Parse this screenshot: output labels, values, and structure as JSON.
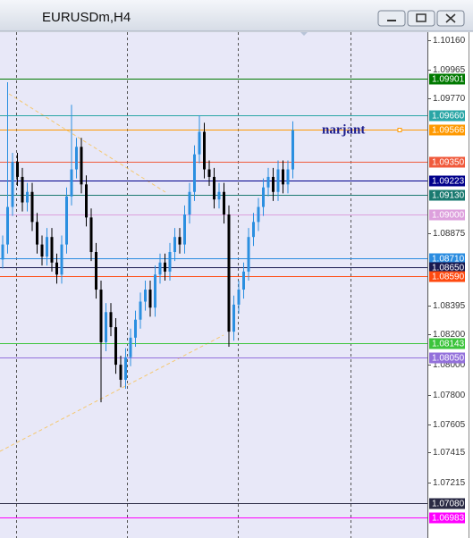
{
  "chart_data": {
    "type": "candlestick",
    "title": "EURUSDm,H4",
    "annotation": "narjant",
    "ylim": [
      1.06847,
      1.10219
    ],
    "yticks": [
      {
        "value": 1.1016,
        "label": "1.10160"
      },
      1.09965,
      {
        "value": 1.0977,
        "label": "1.09770"
      },
      1.08875,
      1.08395,
      {
        "value": 1.082,
        "label": "1.08200"
      },
      {
        "value": 1.08,
        "label": "1.08000"
      },
      {
        "value": 1.078,
        "label": "1.07800"
      },
      1.07605,
      1.07415,
      1.07215
    ],
    "up_color": "#2b8fe0",
    "down_color": "#000000",
    "open": [
      1.087,
      1.088,
      1.0905,
      1.0935,
      1.0925,
      1.0908,
      1.0915,
      1.0895,
      1.088,
      1.0872,
      1.0885,
      1.0868,
      1.086,
      1.088,
      1.0912,
      1.093,
      1.0945,
      1.092,
      1.0898,
      1.0875,
      1.085,
      1.0815,
      1.0835,
      1.0825,
      1.08,
      1.079,
      1.0805,
      1.0818,
      1.083,
      1.0842,
      1.085,
      1.0838,
      1.086,
      1.0868,
      1.0862,
      1.0875,
      1.0885,
      1.088,
      1.09,
      1.0915,
      1.094,
      1.0955,
      1.093,
      1.0925,
      1.091,
      1.0915,
      1.09,
      1.0822,
      1.084,
      1.085,
      1.0862,
      1.0885,
      1.0895,
      1.0905,
      1.0918,
      1.0925,
      1.0915,
      1.093,
      1.092,
      1.093
    ],
    "high": [
      1.0886,
      1.0988,
      1.0941,
      1.0941,
      1.0931,
      1.0921,
      1.0921,
      1.0901,
      1.0886,
      1.0891,
      1.0891,
      1.0874,
      1.0886,
      1.0918,
      1.0973,
      1.0951,
      1.0951,
      1.0926,
      1.0904,
      1.0881,
      1.0856,
      1.0841,
      1.0841,
      1.0831,
      1.0806,
      1.0811,
      1.0824,
      1.0836,
      1.0848,
      1.0856,
      1.0856,
      1.0866,
      1.0874,
      1.0874,
      1.0881,
      1.0891,
      1.0891,
      1.0906,
      1.0921,
      1.0946,
      1.0966,
      1.0961,
      1.0936,
      1.0931,
      1.0921,
      1.0921,
      1.0906,
      1.0846,
      1.0856,
      1.0868,
      1.0891,
      1.0901,
      1.0911,
      1.0924,
      1.0931,
      1.0931,
      1.0936,
      1.0936,
      1.0936,
      1.0962
    ],
    "low": [
      1.0864,
      1.0874,
      1.0899,
      1.0919,
      1.0902,
      1.0902,
      1.0889,
      1.0874,
      1.0866,
      1.0866,
      1.0862,
      1.0854,
      1.0854,
      1.0874,
      1.0906,
      1.0924,
      1.0914,
      1.0892,
      1.0869,
      1.0844,
      1.0775,
      1.0809,
      1.0819,
      1.0794,
      1.0785,
      1.0784,
      1.0799,
      1.0812,
      1.0824,
      1.0836,
      1.0832,
      1.0832,
      1.0854,
      1.0856,
      1.0856,
      1.0869,
      1.0874,
      1.0874,
      1.0894,
      1.0909,
      1.0934,
      1.0924,
      1.0919,
      1.0904,
      1.0904,
      1.0894,
      1.0812,
      1.0816,
      1.0834,
      1.0844,
      1.0856,
      1.0879,
      1.0889,
      1.0899,
      1.0912,
      1.0909,
      1.0909,
      1.0914,
      1.0914,
      1.0924
    ],
    "close": [
      1.088,
      1.0905,
      1.0935,
      1.0925,
      1.0908,
      1.0915,
      1.0895,
      1.088,
      1.0872,
      1.0885,
      1.0868,
      1.086,
      1.088,
      1.0912,
      1.093,
      1.0945,
      1.092,
      1.0898,
      1.0875,
      1.085,
      1.0815,
      1.0835,
      1.0825,
      1.08,
      1.079,
      1.0805,
      1.0818,
      1.083,
      1.0842,
      1.085,
      1.0838,
      1.086,
      1.0868,
      1.0862,
      1.0875,
      1.0885,
      1.088,
      1.09,
      1.0915,
      1.094,
      1.0955,
      1.093,
      1.0925,
      1.091,
      1.0915,
      1.09,
      1.0822,
      1.084,
      1.085,
      1.0862,
      1.0885,
      1.0895,
      1.0905,
      1.0918,
      1.0925,
      1.0915,
      1.093,
      1.092,
      1.093,
      1.0956
    ],
    "levels": [
      {
        "value": 1.09901,
        "color": "#007a00"
      },
      {
        "value": 1.0966,
        "label": "1.09660",
        "color": "#2aa6a6"
      },
      {
        "value": 1.09566,
        "color": "#ff9900"
      },
      {
        "value": 1.0935,
        "label": "1.09350",
        "color": "#f05a3c"
      },
      {
        "value": 1.09223,
        "color": "#00008b"
      },
      {
        "value": 1.0913,
        "label": "1.09130",
        "color": "#1a7a70"
      },
      {
        "value": 1.09,
        "label": "1.09000",
        "color": "#dda0dd"
      },
      {
        "value": 1.0871,
        "label": "1.08710",
        "color": "#2a8ce0"
      },
      {
        "value": 1.0865,
        "label": "1.08650",
        "color": "#191950"
      },
      {
        "value": 1.0859,
        "label": "1.08590",
        "color": "#ff4a10"
      },
      {
        "value": 1.08143,
        "color": "#3cc43c"
      },
      {
        "value": 1.0805,
        "label": "1.08050",
        "color": "#9370db"
      },
      {
        "value": 1.0708,
        "label": "1.07080",
        "color": "#2a2a44"
      },
      {
        "value": 1.06983,
        "color": "#ff00ff"
      }
    ]
  }
}
